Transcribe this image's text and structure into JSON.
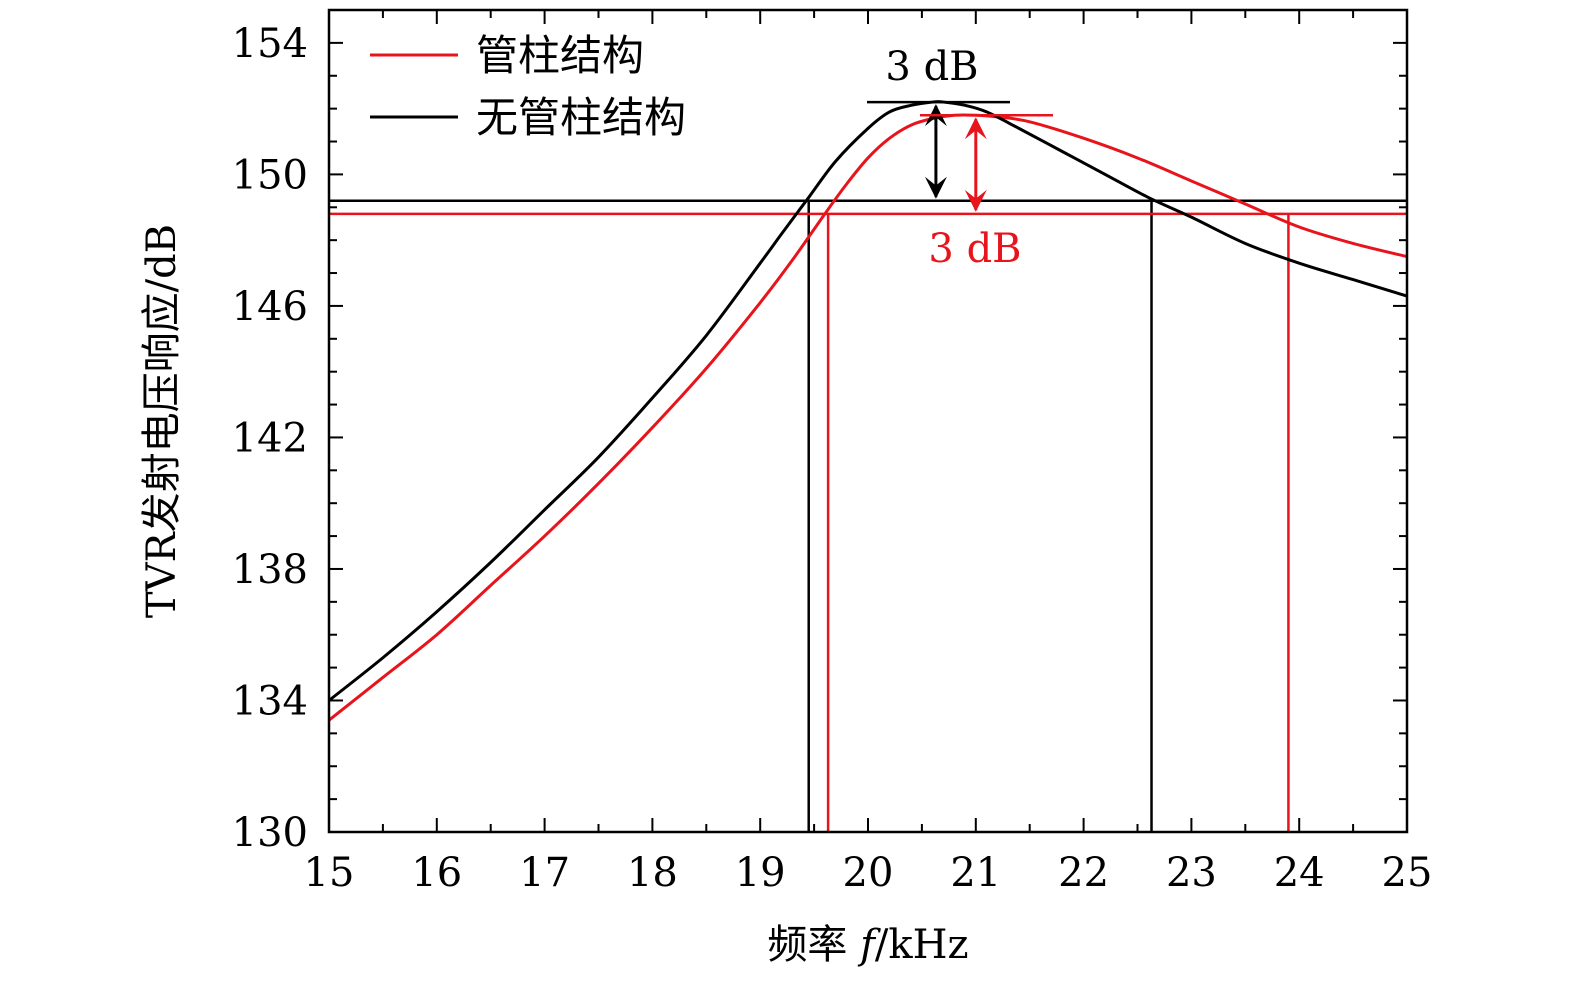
{
  "chart_data": {
    "type": "line",
    "title": "",
    "xlabel_prefix": "频率 ",
    "xlabel_var": "f",
    "xlabel_suffix": "/kHz",
    "ylabel": "TVR发射电压响应/dB",
    "xlim": [
      15,
      25
    ],
    "ylim": [
      130,
      155
    ],
    "x_ticks": [
      15,
      16,
      17,
      18,
      19,
      20,
      21,
      22,
      23,
      24,
      25
    ],
    "y_ticks": [
      130,
      134,
      138,
      142,
      146,
      150,
      154
    ],
    "y_minor_step": 1,
    "x_minor_step": 0.5,
    "grid": false,
    "legend_position": "top-left",
    "colors": {
      "with_tube": "#e8141c",
      "without_tube": "#000000"
    },
    "series": [
      {
        "name": "管柱结构",
        "color": "#e8141c",
        "peak_x": 21.0,
        "peak_y": 151.8,
        "x": [
          15,
          15.5,
          16,
          16.5,
          17,
          17.5,
          18,
          18.5,
          19,
          19.3,
          19.6,
          19.8,
          20,
          20.2,
          20.4,
          20.6,
          20.8,
          21,
          21.2,
          21.5,
          22,
          22.5,
          23,
          23.5,
          24,
          24.5,
          25
        ],
        "y": [
          133.4,
          134.7,
          136.0,
          137.5,
          139.0,
          140.6,
          142.3,
          144.1,
          146.1,
          147.4,
          148.8,
          149.7,
          150.5,
          151.1,
          151.5,
          151.7,
          151.8,
          151.8,
          151.75,
          151.6,
          151.1,
          150.5,
          149.8,
          149.1,
          148.4,
          147.9,
          147.5
        ]
      },
      {
        "name": "无管柱结构",
        "color": "#000000",
        "peak_x": 20.7,
        "peak_y": 152.2,
        "x": [
          15,
          15.5,
          16,
          16.5,
          17,
          17.5,
          18,
          18.5,
          19,
          19.2,
          19.45,
          19.7,
          20,
          20.2,
          20.4,
          20.6,
          20.7,
          20.9,
          21.1,
          21.4,
          21.8,
          22.2,
          22.6,
          23,
          23.5,
          24,
          24.5,
          25
        ],
        "y": [
          134.0,
          135.3,
          136.7,
          138.2,
          139.8,
          141.4,
          143.2,
          145.1,
          147.3,
          148.2,
          149.3,
          150.4,
          151.4,
          151.9,
          152.1,
          152.2,
          152.2,
          152.1,
          151.9,
          151.4,
          150.7,
          150.0,
          149.3,
          148.7,
          147.9,
          147.3,
          146.8,
          146.3
        ]
      }
    ],
    "annotations": {
      "without_tube": {
        "label": "3 dB",
        "peak_y": 152.2,
        "level_y": 149.2,
        "bandwidth_x": [
          19.45,
          22.63
        ],
        "arrow_x": 20.63
      },
      "with_tube": {
        "label": "3 dB",
        "peak_y": 151.8,
        "level_y": 148.8,
        "bandwidth_x": [
          19.63,
          23.9
        ],
        "arrow_x": 21.0
      }
    }
  }
}
